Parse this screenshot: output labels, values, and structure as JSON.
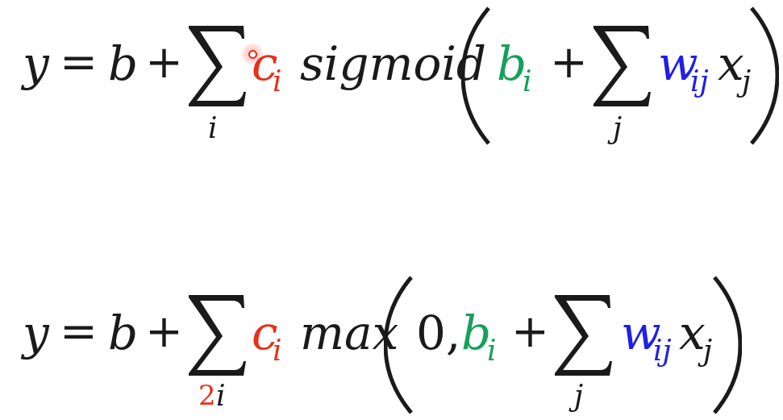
{
  "equation1": {
    "y": "y",
    "eq": "=",
    "b": "b",
    "plus1": "+",
    "sum_index": "i",
    "c": "c",
    "c_sub": "i",
    "func": "sigmoid",
    "bi": "b",
    "bi_sub": "i",
    "plus2": "+",
    "sum2_index": "j",
    "w": "w",
    "w_sub": "ij",
    "x": "x",
    "x_sub": "j"
  },
  "equation2": {
    "y": "y",
    "eq": "=",
    "b": "b",
    "plus1": "+",
    "sum_index_num": "2",
    "sum_index": "i",
    "c": "c",
    "c_sub": "i",
    "func": "max",
    "zero": "0,",
    "bi": "b",
    "bi_sub": "i",
    "plus2": "+",
    "sum2_index": "j",
    "w": "w",
    "w_sub": "ij",
    "x": "x",
    "x_sub": "j"
  },
  "colors": {
    "c_term": "#e8301c",
    "b_term": "#16a05a",
    "w_term": "#1f1fe6",
    "annotation": "#e8301c"
  }
}
